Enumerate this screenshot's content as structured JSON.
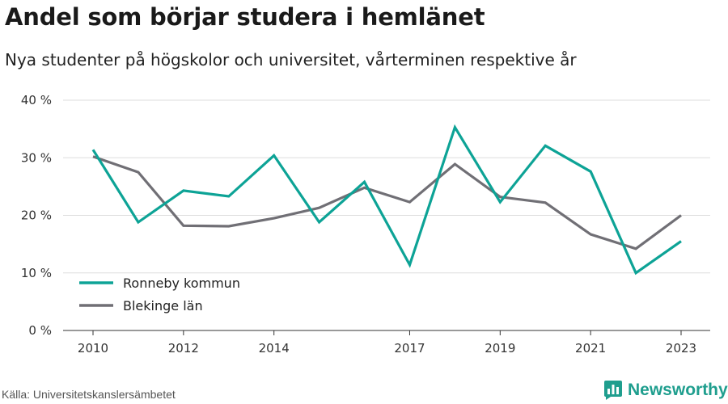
{
  "title": "Andel som börjar studera i hemlänet",
  "subtitle": "Nya studenter på högskolor och universitet, vårterminen respektive år",
  "source": "Källa: Universitetskanslersämbetet",
  "brand": "Newsworthy",
  "colors": {
    "ronneby": "#0da396",
    "blekinge": "#706f75",
    "brand": "#1f9e8e",
    "grid": "#dddddd"
  },
  "chart_data": {
    "type": "line",
    "x": [
      2010,
      2011,
      2012,
      2013,
      2014,
      2015,
      2016,
      2017,
      2018,
      2019,
      2020,
      2021,
      2022,
      2023
    ],
    "x_ticks": [
      {
        "value": 2010,
        "label": "2010"
      },
      {
        "value": 2012,
        "label": "2012"
      },
      {
        "value": 2014,
        "label": "2014"
      },
      {
        "value": 2017,
        "label": "2017"
      },
      {
        "value": 2019,
        "label": "2019"
      },
      {
        "value": 2021,
        "label": "2021"
      },
      {
        "value": 2023,
        "label": "2023"
      }
    ],
    "y_ticks": [
      {
        "value": 0,
        "label": "0 %"
      },
      {
        "value": 10,
        "label": "10 %"
      },
      {
        "value": 20,
        "label": "20 %"
      },
      {
        "value": 30,
        "label": "30 %"
      },
      {
        "value": 40,
        "label": "40 %"
      }
    ],
    "xlim": [
      2010,
      2023
    ],
    "ylim": [
      0,
      40
    ],
    "grid": true,
    "legend_position": "bottom-left",
    "series": [
      {
        "name": "Ronneby kommun",
        "color": "#0da396",
        "values": [
          31.4,
          18.8,
          24.3,
          23.3,
          30.4,
          18.8,
          25.8,
          11.4,
          35.3,
          22.3,
          32.1,
          27.6,
          10.0,
          15.5
        ]
      },
      {
        "name": "Blekinge län",
        "color": "#706f75",
        "values": [
          30.2,
          27.5,
          18.2,
          18.1,
          19.5,
          21.3,
          24.8,
          22.3,
          28.9,
          23.2,
          22.2,
          16.7,
          14.2,
          20.0
        ]
      }
    ]
  }
}
